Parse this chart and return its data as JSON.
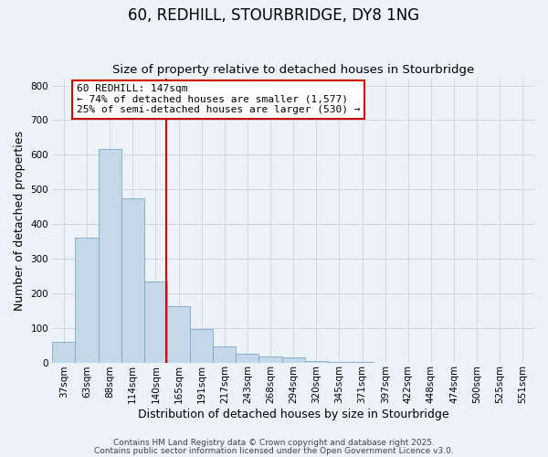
{
  "title": "60, REDHILL, STOURBRIDGE, DY8 1NG",
  "subtitle": "Size of property relative to detached houses in Stourbridge",
  "xlabel": "Distribution of detached houses by size in Stourbridge",
  "ylabel": "Number of detached properties",
  "bar_values": [
    60,
    360,
    617,
    475,
    235,
    163,
    97,
    46,
    25,
    17,
    15,
    5,
    2,
    1,
    0,
    0,
    0,
    0,
    0,
    0,
    0
  ],
  "bar_labels": [
    "37sqm",
    "63sqm",
    "88sqm",
    "114sqm",
    "140sqm",
    "165sqm",
    "191sqm",
    "217sqm",
    "243sqm",
    "268sqm",
    "294sqm",
    "320sqm",
    "345sqm",
    "371sqm",
    "397sqm",
    "422sqm",
    "448sqm",
    "474sqm",
    "500sqm",
    "525sqm",
    "551sqm"
  ],
  "bar_color": "#c5d8ea",
  "bar_edge_color": "#7aaac8",
  "vline_color": "#cc0000",
  "vline_x_index": 4.47,
  "annotation_text": "60 REDHILL: 147sqm\n← 74% of detached houses are smaller (1,577)\n25% of semi-detached houses are larger (530) →",
  "annotation_box_facecolor": "#ffffff",
  "annotation_box_edgecolor": "#cc0000",
  "ylim": [
    0,
    820
  ],
  "yticks": [
    0,
    100,
    200,
    300,
    400,
    500,
    600,
    700,
    800
  ],
  "grid_color": "#cdd8e5",
  "bg_color": "#edf2f8",
  "footer1": "Contains HM Land Registry data © Crown copyright and database right 2025.",
  "footer2": "Contains public sector information licensed under the Open Government Licence v3.0.",
  "title_fontsize": 12,
  "subtitle_fontsize": 9.5,
  "tick_fontsize": 7.5,
  "axis_label_fontsize": 9,
  "annotation_fontsize": 8,
  "footer_fontsize": 6.5
}
